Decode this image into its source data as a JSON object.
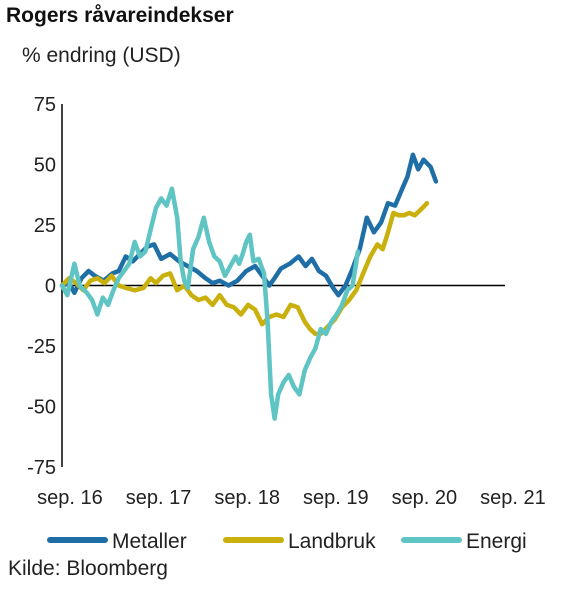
{
  "chart_data": {
    "type": "line",
    "title": "Rogers råvareindekser",
    "ylabel": "% endring (USD)",
    "source": "Kilde: Bloomberg",
    "ylim": [
      -75,
      75
    ],
    "y_ticks": [
      75,
      50,
      25,
      0,
      -25,
      -50,
      -75
    ],
    "x_range": [
      2016.58,
      2021.58
    ],
    "x_ticks": [
      {
        "x": 2016.67,
        "label": "sep. 16"
      },
      {
        "x": 2017.67,
        "label": "sep. 17"
      },
      {
        "x": 2018.67,
        "label": "sep. 18"
      },
      {
        "x": 2019.67,
        "label": "sep. 19"
      },
      {
        "x": 2020.67,
        "label": "sep. 20"
      },
      {
        "x": 2021.67,
        "label": "sep. 21"
      }
    ],
    "grid": false,
    "legend_position": "bottom",
    "series": [
      {
        "name": "Metaller",
        "color": "#1f6fa6",
        "points": [
          [
            2016.58,
            0
          ],
          [
            2016.66,
            1
          ],
          [
            2016.72,
            -3
          ],
          [
            2016.8,
            3
          ],
          [
            2016.88,
            6
          ],
          [
            2016.95,
            4
          ],
          [
            2017.05,
            2
          ],
          [
            2017.15,
            5
          ],
          [
            2017.22,
            6
          ],
          [
            2017.3,
            12
          ],
          [
            2017.38,
            10
          ],
          [
            2017.46,
            13
          ],
          [
            2017.54,
            16
          ],
          [
            2017.62,
            17
          ],
          [
            2017.7,
            11
          ],
          [
            2017.8,
            13
          ],
          [
            2017.9,
            10
          ],
          [
            2018.0,
            8
          ],
          [
            2018.1,
            6
          ],
          [
            2018.2,
            3
          ],
          [
            2018.28,
            1
          ],
          [
            2018.36,
            2
          ],
          [
            2018.46,
            0
          ],
          [
            2018.56,
            2
          ],
          [
            2018.66,
            6
          ],
          [
            2018.76,
            8
          ],
          [
            2018.86,
            3
          ],
          [
            2018.92,
            0
          ],
          [
            2018.98,
            3
          ],
          [
            2019.05,
            7
          ],
          [
            2019.15,
            9
          ],
          [
            2019.25,
            12
          ],
          [
            2019.33,
            8
          ],
          [
            2019.4,
            11
          ],
          [
            2019.48,
            6
          ],
          [
            2019.56,
            4
          ],
          [
            2019.64,
            -1
          ],
          [
            2019.7,
            -4
          ],
          [
            2019.78,
            0
          ],
          [
            2019.86,
            7
          ],
          [
            2019.94,
            15
          ],
          [
            2020.02,
            28
          ],
          [
            2020.1,
            22
          ],
          [
            2020.18,
            26
          ],
          [
            2020.26,
            34
          ],
          [
            2020.34,
            33
          ],
          [
            2020.42,
            40
          ],
          [
            2020.48,
            45
          ],
          [
            2020.54,
            54
          ],
          [
            2020.6,
            48
          ],
          [
            2020.66,
            52
          ],
          [
            2020.74,
            49
          ],
          [
            2020.8,
            43
          ]
        ]
      },
      {
        "name": "Landbruk",
        "color": "#c9b00c",
        "points": [
          [
            2016.58,
            0
          ],
          [
            2016.66,
            3
          ],
          [
            2016.74,
            1
          ],
          [
            2016.82,
            -2
          ],
          [
            2016.9,
            2
          ],
          [
            2016.98,
            3
          ],
          [
            2017.06,
            1
          ],
          [
            2017.14,
            4
          ],
          [
            2017.22,
            0
          ],
          [
            2017.3,
            -1
          ],
          [
            2017.4,
            -2
          ],
          [
            2017.5,
            -1
          ],
          [
            2017.58,
            3
          ],
          [
            2017.64,
            1
          ],
          [
            2017.72,
            4
          ],
          [
            2017.8,
            5
          ],
          [
            2017.88,
            -2
          ],
          [
            2017.96,
            0
          ],
          [
            2018.04,
            -4
          ],
          [
            2018.12,
            -6
          ],
          [
            2018.2,
            -5
          ],
          [
            2018.28,
            -8
          ],
          [
            2018.36,
            -4
          ],
          [
            2018.44,
            -8
          ],
          [
            2018.52,
            -9
          ],
          [
            2018.6,
            -12
          ],
          [
            2018.68,
            -8
          ],
          [
            2018.76,
            -10
          ],
          [
            2018.84,
            -16
          ],
          [
            2018.92,
            -13
          ],
          [
            2019.0,
            -12
          ],
          [
            2019.08,
            -13
          ],
          [
            2019.16,
            -8
          ],
          [
            2019.24,
            -9
          ],
          [
            2019.32,
            -15
          ],
          [
            2019.38,
            -18
          ],
          [
            2019.44,
            -20
          ],
          [
            2019.5,
            -20
          ],
          [
            2019.58,
            -17
          ],
          [
            2019.66,
            -14
          ],
          [
            2019.74,
            -9
          ],
          [
            2019.82,
            -6
          ],
          [
            2019.9,
            -2
          ],
          [
            2019.98,
            5
          ],
          [
            2020.06,
            12
          ],
          [
            2020.14,
            17
          ],
          [
            2020.2,
            15
          ],
          [
            2020.26,
            22
          ],
          [
            2020.32,
            30
          ],
          [
            2020.38,
            29
          ],
          [
            2020.44,
            29
          ],
          [
            2020.5,
            30
          ],
          [
            2020.56,
            29
          ],
          [
            2020.62,
            31
          ],
          [
            2020.7,
            34
          ]
        ]
      },
      {
        "name": "Energi",
        "color": "#5fc4c4",
        "points": [
          [
            2016.58,
            0
          ],
          [
            2016.64,
            -4
          ],
          [
            2016.72,
            9
          ],
          [
            2016.78,
            0
          ],
          [
            2016.86,
            -3
          ],
          [
            2016.92,
            -6
          ],
          [
            2016.98,
            -12
          ],
          [
            2017.04,
            -5
          ],
          [
            2017.1,
            -8
          ],
          [
            2017.16,
            -2
          ],
          [
            2017.22,
            3
          ],
          [
            2017.28,
            6
          ],
          [
            2017.34,
            9
          ],
          [
            2017.4,
            18
          ],
          [
            2017.46,
            12
          ],
          [
            2017.52,
            14
          ],
          [
            2017.58,
            23
          ],
          [
            2017.64,
            32
          ],
          [
            2017.7,
            36
          ],
          [
            2017.76,
            33
          ],
          [
            2017.82,
            40
          ],
          [
            2017.88,
            28
          ],
          [
            2017.92,
            10
          ],
          [
            2017.96,
            2
          ],
          [
            2018.0,
            -1
          ],
          [
            2018.06,
            15
          ],
          [
            2018.12,
            20
          ],
          [
            2018.18,
            28
          ],
          [
            2018.24,
            18
          ],
          [
            2018.3,
            12
          ],
          [
            2018.36,
            10
          ],
          [
            2018.42,
            4
          ],
          [
            2018.48,
            8
          ],
          [
            2018.54,
            12
          ],
          [
            2018.58,
            9
          ],
          [
            2018.62,
            13
          ],
          [
            2018.66,
            18
          ],
          [
            2018.7,
            21
          ],
          [
            2018.74,
            10
          ],
          [
            2018.8,
            11
          ],
          [
            2018.86,
            5
          ],
          [
            2018.9,
            -15
          ],
          [
            2018.94,
            -45
          ],
          [
            2018.98,
            -55
          ],
          [
            2019.02,
            -45
          ],
          [
            2019.08,
            -40
          ],
          [
            2019.14,
            -37
          ],
          [
            2019.2,
            -42
          ],
          [
            2019.26,
            -45
          ],
          [
            2019.32,
            -35
          ],
          [
            2019.38,
            -30
          ],
          [
            2019.44,
            -26
          ],
          [
            2019.5,
            -18
          ],
          [
            2019.56,
            -20
          ],
          [
            2019.62,
            -15
          ],
          [
            2019.68,
            -12
          ],
          [
            2019.74,
            -8
          ],
          [
            2019.8,
            -2
          ],
          [
            2019.86,
            0
          ],
          [
            2019.92,
            14
          ]
        ]
      }
    ]
  }
}
